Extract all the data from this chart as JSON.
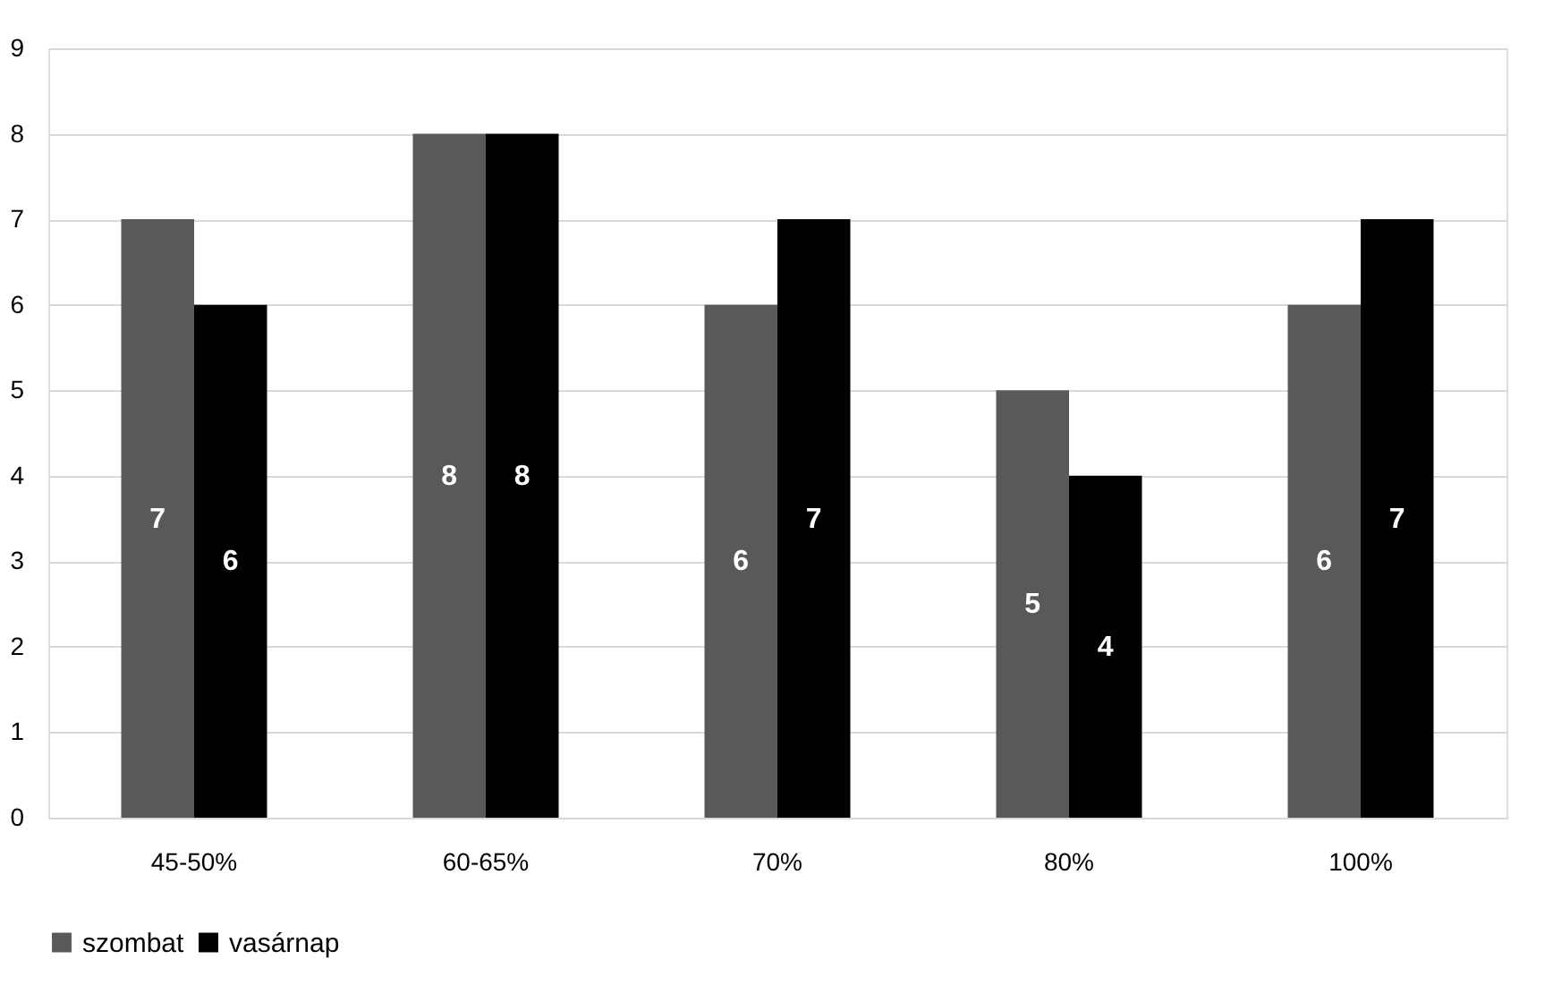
{
  "chart_data": {
    "type": "bar",
    "categories": [
      "45-50%",
      "60-65%",
      "70%",
      "80%",
      "100%"
    ],
    "series": [
      {
        "name": "szombat",
        "color": "#595959",
        "values": [
          7,
          8,
          6,
          5,
          6
        ]
      },
      {
        "name": "vasárnap",
        "color": "#000000",
        "values": [
          6,
          8,
          7,
          4,
          7
        ]
      }
    ],
    "ylim": [
      0,
      9
    ],
    "yticks": [
      0,
      1,
      2,
      3,
      4,
      5,
      6,
      7,
      8,
      9
    ],
    "grid": "y",
    "legend": "bottom",
    "data_labels": true
  }
}
